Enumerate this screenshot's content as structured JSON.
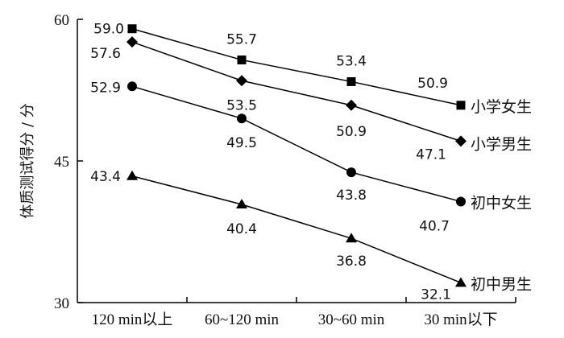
{
  "chart_data": {
    "type": "line",
    "ylabel": "体质测试得分 / 分",
    "xlabel": "",
    "title": "",
    "categories": [
      "120 min以上",
      "60~120 min",
      "30~60 min",
      "30 min以下"
    ],
    "ylim": [
      30,
      60
    ],
    "yticks": [
      30,
      45,
      60
    ],
    "grid": false,
    "legend": "end-of-line labels",
    "series": [
      {
        "name": "小学女生",
        "marker": "square",
        "values": [
          59.0,
          55.7,
          53.4,
          50.9
        ],
        "labels": [
          "59.0",
          "55.7",
          "53.4",
          "50.9"
        ]
      },
      {
        "name": "小学男生",
        "marker": "diamond",
        "values": [
          57.6,
          53.5,
          50.9,
          47.1
        ],
        "labels": [
          "57.6",
          "53.5",
          "50.9",
          "47.1"
        ]
      },
      {
        "name": "初中女生",
        "marker": "circle",
        "values": [
          52.9,
          49.5,
          43.8,
          40.7
        ],
        "labels": [
          "52.9",
          "49.5",
          "43.8",
          "40.7"
        ]
      },
      {
        "name": "初中男生",
        "marker": "triangle",
        "values": [
          43.4,
          40.4,
          36.8,
          32.1
        ],
        "labels": [
          "43.4",
          "40.4",
          "36.8",
          "32.1"
        ]
      }
    ],
    "colors": {
      "line": "#000000",
      "marker": "#000000"
    }
  }
}
